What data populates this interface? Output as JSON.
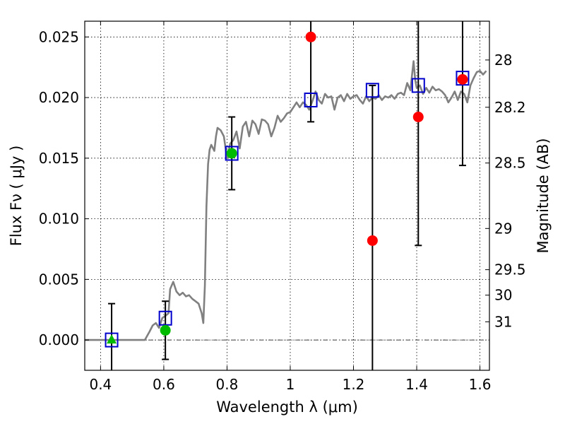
{
  "chart_data": {
    "type": "scatter",
    "xlabel": "Wavelength  λ (μm)",
    "ylabel": "Flux  Fν  ( μJy )",
    "y2label": "Magnitude (AB)",
    "xlim": [
      0.35,
      1.63
    ],
    "ylim": [
      -0.0025,
      0.0263
    ],
    "grid": true,
    "x_ticks": [
      0.4,
      0.6,
      0.8,
      1.0,
      1.2,
      1.4,
      1.6
    ],
    "x_tick_labels": [
      "0.4",
      "0.6",
      "0.8",
      "1",
      "1.2",
      "1.4",
      "1.6"
    ],
    "y_ticks": [
      0.0,
      0.005,
      0.01,
      0.015,
      0.02,
      0.025
    ],
    "y_tick_labels": [
      "0.000",
      "0.005",
      "0.010",
      "0.015",
      "0.020",
      "0.025"
    ],
    "y2_ticks": [
      {
        "label": "28",
        "flux": 0.0231
      },
      {
        "label": "28.2",
        "flux": 0.0192
      },
      {
        "label": "28.5",
        "flux": 0.0146
      },
      {
        "label": "29",
        "flux": 0.0092
      },
      {
        "label": "29.5",
        "flux": 0.0058
      },
      {
        "label": "30",
        "flux": 0.0037
      },
      {
        "label": "31",
        "flux": 0.0015
      }
    ],
    "model_spectrum": {
      "color": "#808080",
      "x": [
        0.35,
        0.4,
        0.45,
        0.5,
        0.54,
        0.555,
        0.565,
        0.575,
        0.585,
        0.595,
        0.605,
        0.615,
        0.62,
        0.63,
        0.64,
        0.65,
        0.66,
        0.67,
        0.68,
        0.69,
        0.7,
        0.71,
        0.72,
        0.725,
        0.73,
        0.735,
        0.74,
        0.745,
        0.75,
        0.76,
        0.765,
        0.77,
        0.78,
        0.79,
        0.8,
        0.81,
        0.82,
        0.83,
        0.84,
        0.85,
        0.86,
        0.87,
        0.88,
        0.89,
        0.9,
        0.91,
        0.92,
        0.93,
        0.94,
        0.95,
        0.96,
        0.97,
        0.98,
        0.99,
        1.0,
        1.01,
        1.02,
        1.03,
        1.04,
        1.05,
        1.06,
        1.07,
        1.08,
        1.09,
        1.1,
        1.11,
        1.12,
        1.13,
        1.14,
        1.15,
        1.16,
        1.17,
        1.18,
        1.19,
        1.2,
        1.21,
        1.22,
        1.23,
        1.24,
        1.25,
        1.26,
        1.27,
        1.28,
        1.29,
        1.3,
        1.31,
        1.32,
        1.33,
        1.34,
        1.35,
        1.36,
        1.37,
        1.38,
        1.385,
        1.39,
        1.395,
        1.4,
        1.41,
        1.42,
        1.43,
        1.44,
        1.45,
        1.46,
        1.47,
        1.48,
        1.49,
        1.5,
        1.51,
        1.52,
        1.53,
        1.54,
        1.55,
        1.56,
        1.57,
        1.58,
        1.59,
        1.6,
        1.61,
        1.62
      ],
      "y": [
        0.0,
        0.0,
        0.0,
        0.0,
        0.0,
        0.0007,
        0.0012,
        0.0014,
        0.001,
        0.0018,
        0.002,
        0.0022,
        0.0042,
        0.0048,
        0.004,
        0.0037,
        0.0039,
        0.0036,
        0.0037,
        0.0034,
        0.0032,
        0.003,
        0.0022,
        0.0014,
        0.0045,
        0.011,
        0.0145,
        0.0157,
        0.0161,
        0.0156,
        0.0168,
        0.0175,
        0.0173,
        0.0168,
        0.015,
        0.0162,
        0.0165,
        0.0172,
        0.0158,
        0.0176,
        0.018,
        0.0168,
        0.0181,
        0.0178,
        0.017,
        0.0182,
        0.0181,
        0.0178,
        0.0168,
        0.0175,
        0.0185,
        0.018,
        0.0183,
        0.0187,
        0.0188,
        0.0192,
        0.0196,
        0.0192,
        0.0196,
        0.0194,
        0.019,
        0.0197,
        0.0205,
        0.0198,
        0.0195,
        0.0203,
        0.02,
        0.0201,
        0.019,
        0.02,
        0.0202,
        0.0197,
        0.0203,
        0.0199,
        0.0201,
        0.0202,
        0.0198,
        0.0195,
        0.0201,
        0.0197,
        0.02,
        0.0199,
        0.0202,
        0.0198,
        0.0201,
        0.02,
        0.0202,
        0.0199,
        0.0203,
        0.0204,
        0.0202,
        0.0212,
        0.0206,
        0.0218,
        0.023,
        0.0215,
        0.0208,
        0.021,
        0.0203,
        0.0208,
        0.0204,
        0.0209,
        0.0206,
        0.0207,
        0.0205,
        0.0202,
        0.0196,
        0.02,
        0.0205,
        0.0198,
        0.0205,
        0.0203,
        0.0196,
        0.021,
        0.0216,
        0.0221,
        0.0222,
        0.0219,
        0.0222
      ]
    },
    "model_points": {
      "color": "#0000cc",
      "x": [
        0.435,
        0.605,
        0.815,
        1.065,
        1.26,
        1.405,
        1.545
      ],
      "y": [
        0.0,
        0.0018,
        0.0154,
        0.0198,
        0.0206,
        0.021,
        0.0216
      ]
    },
    "observed_points": [
      {
        "x": 0.435,
        "y": 0.0,
        "err": 0.003,
        "marker": "triangle",
        "color": "#00bb00"
      },
      {
        "x": 0.605,
        "y": 0.0008,
        "err": 0.0024,
        "marker": "circle",
        "color": "#00bb00"
      },
      {
        "x": 0.815,
        "y": 0.0154,
        "err": 0.003,
        "marker": "circle",
        "color": "#00bb00"
      },
      {
        "x": 1.065,
        "y": 0.025,
        "err": 0.007,
        "marker": "circle",
        "color": "#ff0000"
      },
      {
        "x": 1.26,
        "y": 0.0082,
        "err": 0.0128,
        "marker": "circle",
        "color": "#ff0000"
      },
      {
        "x": 1.405,
        "y": 0.0184,
        "err": 0.0106,
        "marker": "circle",
        "color": "#ff0000"
      },
      {
        "x": 1.545,
        "y": 0.0215,
        "err": 0.0071,
        "marker": "circle",
        "color": "#ff0000"
      }
    ]
  }
}
